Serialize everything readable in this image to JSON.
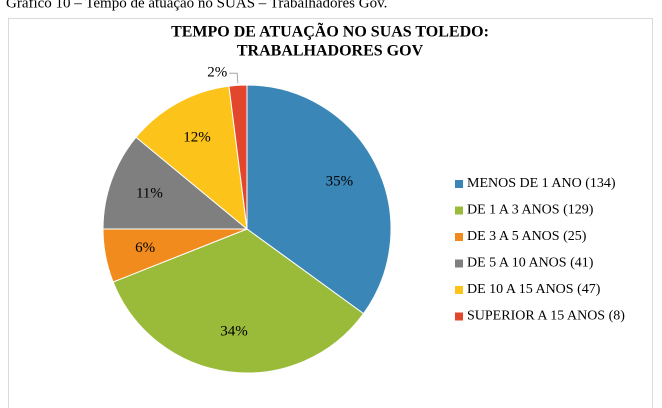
{
  "caption": "Gráfico 10 – Tempo de atuação no SUAS – Trabalhadores Gov.",
  "chart_data": {
    "type": "pie",
    "title": [
      "TEMPO DE ATUAÇÃO  NO SUAS TOLEDO:",
      "TRABALHADORES  GOV"
    ],
    "categories": [
      "MENOS DE   1 ANO (134)",
      "DE 1 A 3 ANOS (129)",
      "DE 3 A 5 ANOS (25)",
      "DE 5 A 10 ANOS (41)",
      "DE 10 A 15 ANOS (47)",
      "SUPERIOR A 15 ANOS (8)"
    ],
    "values": [
      35,
      34,
      6,
      11,
      12,
      2
    ],
    "value_labels": [
      "35%",
      "34%",
      "6%",
      "11%",
      "12%",
      "2%"
    ],
    "colors": [
      "#3a87b7",
      "#9aba3a",
      "#f28b1e",
      "#7f7f7f",
      "#fcc31a",
      "#e2472d"
    ],
    "legend": "right"
  }
}
